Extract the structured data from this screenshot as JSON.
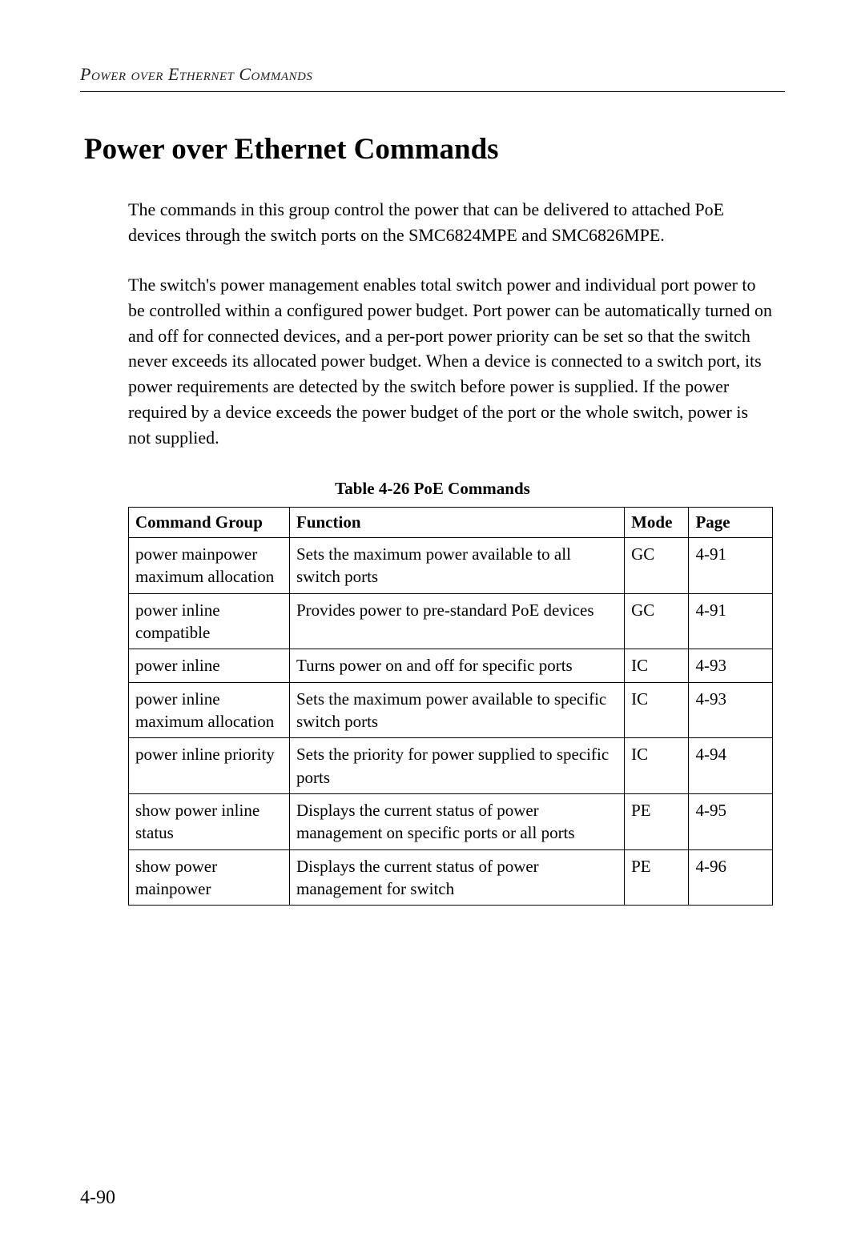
{
  "running_header": "Power over Ethernet Commands",
  "section_title": "Power over Ethernet Commands",
  "paragraph1": "The commands in this group control the power that can be delivered to attached PoE devices through the switch ports on the SMC6824MPE and SMC6826MPE.",
  "paragraph2": "The switch's power management enables total switch power and individual port power to be controlled within a configured power budget. Port power can be automatically turned on and off for connected devices, and a per-port power priority can be set so that the switch never exceeds its allocated power budget. When a device is connected to a switch port, its power requirements are detected by the switch before power is supplied. If the power required by a device exceeds the power budget of the port or the whole switch, power is not supplied.",
  "table_caption": "Table 4-26   PoE Commands",
  "table": {
    "headers": {
      "command": "Command Group",
      "function": "Function",
      "mode": "Mode",
      "page": "Page"
    },
    "rows": [
      {
        "command": "power mainpower maximum allocation",
        "function": "Sets the maximum power available to all switch ports",
        "mode": "GC",
        "page": "4-91"
      },
      {
        "command": "power inline compatible",
        "function": "Provides power to pre-standard PoE devices",
        "mode": "GC",
        "page": "4-91"
      },
      {
        "command": "power inline",
        "function": "Turns power on and off for specific ports",
        "mode": "IC",
        "page": "4-93"
      },
      {
        "command": "power inline maximum allocation",
        "function": "Sets the maximum power available to specific switch ports",
        "mode": "IC",
        "page": "4-93"
      },
      {
        "command": "power inline priority",
        "function": "Sets the priority for power supplied to specific ports",
        "mode": "IC",
        "page": "4-94"
      },
      {
        "command": "show power inline status",
        "function": "Displays the current status of power management on specific ports or all ports",
        "mode": "PE",
        "page": "4-95"
      },
      {
        "command": "show power mainpower",
        "function": "Displays the current status of power management for switch",
        "mode": "PE",
        "page": "4-96"
      }
    ]
  },
  "page_number": "4-90"
}
